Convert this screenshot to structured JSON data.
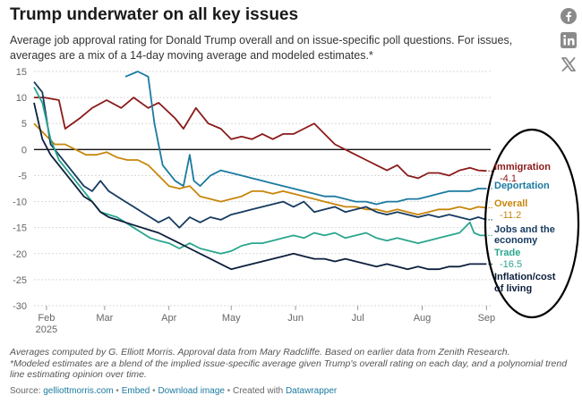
{
  "header": {
    "title": "Trump underwater on all key issues",
    "subtitle": "Average job approval rating for Donald Trump overall and on issue-specific poll questions. For issues, averages are a mix of a 14-day moving average and modeled estimates.*"
  },
  "share": {
    "facebook": "facebook-icon",
    "linkedin": "linkedin-icon",
    "x": "x-icon"
  },
  "chart_data": {
    "type": "line",
    "title": "Trump underwater on all key issues",
    "xlabel": "",
    "ylabel": "",
    "ylim": [
      -30,
      15
    ],
    "yticks": [
      15,
      10,
      5,
      0,
      -5,
      -10,
      -15,
      -20,
      -25,
      -30
    ],
    "x_range": [
      0,
      220
    ],
    "xticks": [
      {
        "x": 6,
        "label": "Feb",
        "sub": "2025"
      },
      {
        "x": 34,
        "label": "Mar",
        "sub": ""
      },
      {
        "x": 65,
        "label": "Apr",
        "sub": ""
      },
      {
        "x": 95,
        "label": "May",
        "sub": ""
      },
      {
        "x": 126,
        "label": "Jun",
        "sub": ""
      },
      {
        "x": 156,
        "label": "Jul",
        "sub": ""
      },
      {
        "x": 187,
        "label": "Aug",
        "sub": ""
      },
      {
        "x": 218,
        "label": "Sep",
        "sub": ""
      }
    ],
    "x_unit": "days since Jan 27, 2025",
    "series": [
      {
        "name": "Immigration",
        "label": "Immigration",
        "last_value": "-4.1",
        "color": "#8b1a1a",
        "points": [
          [
            0,
            10
          ],
          [
            5,
            10
          ],
          [
            12,
            9.5
          ],
          [
            15,
            4
          ],
          [
            22,
            6
          ],
          [
            28,
            8
          ],
          [
            35,
            9.5
          ],
          [
            42,
            8
          ],
          [
            48,
            10
          ],
          [
            55,
            8
          ],
          [
            60,
            9
          ],
          [
            68,
            6
          ],
          [
            72,
            4
          ],
          [
            78,
            8
          ],
          [
            84,
            5
          ],
          [
            90,
            4
          ],
          [
            95,
            2
          ],
          [
            100,
            2.5
          ],
          [
            105,
            2
          ],
          [
            110,
            3
          ],
          [
            115,
            2
          ],
          [
            120,
            3
          ],
          [
            125,
            3
          ],
          [
            130,
            4
          ],
          [
            135,
            5
          ],
          [
            140,
            3
          ],
          [
            145,
            1
          ],
          [
            150,
            0
          ],
          [
            155,
            -1
          ],
          [
            160,
            -2
          ],
          [
            165,
            -3
          ],
          [
            170,
            -4
          ],
          [
            175,
            -3
          ],
          [
            180,
            -5
          ],
          [
            185,
            -5.5
          ],
          [
            190,
            -4.5
          ],
          [
            195,
            -4.5
          ],
          [
            200,
            -5
          ],
          [
            205,
            -4
          ],
          [
            210,
            -3.5
          ],
          [
            214,
            -4
          ],
          [
            218,
            -4.1
          ]
        ]
      },
      {
        "name": "Deportation",
        "label": "Deportation",
        "last_value": "",
        "color": "#1b7aa0",
        "points": [
          [
            44,
            14
          ],
          [
            50,
            15
          ],
          [
            55,
            14
          ],
          [
            58,
            5
          ],
          [
            62,
            -3
          ],
          [
            68,
            -6
          ],
          [
            72,
            -7
          ],
          [
            75,
            -1
          ],
          [
            77,
            -6
          ],
          [
            80,
            -7
          ],
          [
            85,
            -5
          ],
          [
            90,
            -4
          ],
          [
            95,
            -4.5
          ],
          [
            100,
            -5
          ],
          [
            105,
            -5.5
          ],
          [
            110,
            -6
          ],
          [
            115,
            -6.5
          ],
          [
            120,
            -7
          ],
          [
            125,
            -7.5
          ],
          [
            130,
            -8
          ],
          [
            135,
            -8.5
          ],
          [
            140,
            -9
          ],
          [
            145,
            -9
          ],
          [
            150,
            -9.5
          ],
          [
            155,
            -10
          ],
          [
            160,
            -10
          ],
          [
            165,
            -10.5
          ],
          [
            170,
            -10
          ],
          [
            175,
            -10
          ],
          [
            180,
            -9.5
          ],
          [
            185,
            -9.5
          ],
          [
            190,
            -9
          ],
          [
            195,
            -8.5
          ],
          [
            200,
            -8
          ],
          [
            205,
            -8
          ],
          [
            210,
            -8
          ],
          [
            214,
            -7.5
          ],
          [
            218,
            -7.5
          ]
        ]
      },
      {
        "name": "Overall",
        "label": "Overall",
        "last_value": "-11.2",
        "color": "#c8860a",
        "points": [
          [
            0,
            5
          ],
          [
            5,
            3
          ],
          [
            10,
            1
          ],
          [
            15,
            1
          ],
          [
            20,
            0
          ],
          [
            25,
            -1
          ],
          [
            30,
            -1
          ],
          [
            35,
            -0.5
          ],
          [
            40,
            -1.5
          ],
          [
            45,
            -2
          ],
          [
            50,
            -2
          ],
          [
            55,
            -3
          ],
          [
            60,
            -5
          ],
          [
            65,
            -7
          ],
          [
            70,
            -7.5
          ],
          [
            75,
            -7
          ],
          [
            80,
            -9
          ],
          [
            85,
            -9.5
          ],
          [
            90,
            -10
          ],
          [
            95,
            -9.5
          ],
          [
            100,
            -9
          ],
          [
            105,
            -8
          ],
          [
            110,
            -8
          ],
          [
            115,
            -8.5
          ],
          [
            120,
            -8
          ],
          [
            125,
            -8.5
          ],
          [
            130,
            -9
          ],
          [
            135,
            -9.5
          ],
          [
            140,
            -10
          ],
          [
            145,
            -10.5
          ],
          [
            150,
            -11
          ],
          [
            155,
            -11
          ],
          [
            160,
            -11.5
          ],
          [
            165,
            -11.5
          ],
          [
            170,
            -12
          ],
          [
            175,
            -11.5
          ],
          [
            180,
            -12
          ],
          [
            185,
            -12.5
          ],
          [
            190,
            -12
          ],
          [
            195,
            -11.5
          ],
          [
            200,
            -11.5
          ],
          [
            205,
            -11
          ],
          [
            210,
            -11.5
          ],
          [
            214,
            -11
          ],
          [
            218,
            -11.2
          ]
        ]
      },
      {
        "name": "Jobs and the economy",
        "label": "Jobs and the economy",
        "last_value": "",
        "color": "#163a5f",
        "points": [
          [
            0,
            13
          ],
          [
            4,
            11
          ],
          [
            8,
            1
          ],
          [
            12,
            -1
          ],
          [
            16,
            -3
          ],
          [
            20,
            -5
          ],
          [
            24,
            -7
          ],
          [
            28,
            -8
          ],
          [
            32,
            -6
          ],
          [
            36,
            -8
          ],
          [
            40,
            -9
          ],
          [
            44,
            -10
          ],
          [
            48,
            -11
          ],
          [
            52,
            -12
          ],
          [
            56,
            -13
          ],
          [
            60,
            -14
          ],
          [
            65,
            -13
          ],
          [
            70,
            -15
          ],
          [
            75,
            -13
          ],
          [
            80,
            -14
          ],
          [
            85,
            -13
          ],
          [
            90,
            -13.5
          ],
          [
            95,
            -12.5
          ],
          [
            100,
            -12
          ],
          [
            105,
            -11.5
          ],
          [
            110,
            -11
          ],
          [
            115,
            -10.5
          ],
          [
            120,
            -10
          ],
          [
            125,
            -11
          ],
          [
            130,
            -10
          ],
          [
            135,
            -12
          ],
          [
            140,
            -11.5
          ],
          [
            145,
            -11
          ],
          [
            150,
            -12
          ],
          [
            155,
            -11.5
          ],
          [
            160,
            -11
          ],
          [
            165,
            -12
          ],
          [
            170,
            -12.5
          ],
          [
            175,
            -12
          ],
          [
            180,
            -12.5
          ],
          [
            185,
            -13
          ],
          [
            190,
            -12.5
          ],
          [
            195,
            -13
          ],
          [
            200,
            -12.5
          ],
          [
            205,
            -13
          ],
          [
            210,
            -13.5
          ],
          [
            214,
            -13
          ],
          [
            218,
            -13.5
          ]
        ]
      },
      {
        "name": "Trade",
        "label": "Trade",
        "last_value": "-16.5",
        "color": "#2aa68d",
        "points": [
          [
            0,
            12
          ],
          [
            4,
            9
          ],
          [
            8,
            2
          ],
          [
            12,
            -2
          ],
          [
            16,
            -4
          ],
          [
            20,
            -6
          ],
          [
            24,
            -8
          ],
          [
            28,
            -10
          ],
          [
            32,
            -12
          ],
          [
            36,
            -12.5
          ],
          [
            40,
            -13
          ],
          [
            44,
            -14
          ],
          [
            48,
            -15
          ],
          [
            52,
            -16
          ],
          [
            56,
            -17
          ],
          [
            60,
            -17.5
          ],
          [
            65,
            -18
          ],
          [
            70,
            -19
          ],
          [
            75,
            -18
          ],
          [
            80,
            -19
          ],
          [
            85,
            -19.5
          ],
          [
            90,
            -20
          ],
          [
            95,
            -19.5
          ],
          [
            100,
            -18.5
          ],
          [
            105,
            -18
          ],
          [
            110,
            -18
          ],
          [
            115,
            -17.5
          ],
          [
            120,
            -17
          ],
          [
            125,
            -16.5
          ],
          [
            130,
            -17
          ],
          [
            135,
            -16
          ],
          [
            140,
            -16.5
          ],
          [
            145,
            -16
          ],
          [
            150,
            -17
          ],
          [
            155,
            -16.5
          ],
          [
            160,
            -16
          ],
          [
            165,
            -17
          ],
          [
            170,
            -17.5
          ],
          [
            175,
            -17
          ],
          [
            180,
            -17.5
          ],
          [
            185,
            -18
          ],
          [
            190,
            -17.5
          ],
          [
            195,
            -17
          ],
          [
            200,
            -16.5
          ],
          [
            205,
            -16
          ],
          [
            210,
            -14
          ],
          [
            212,
            -16
          ],
          [
            215,
            -16.5
          ],
          [
            218,
            -16.5
          ]
        ]
      },
      {
        "name": "Inflation/cost of living",
        "label": "Inflation/cost of living",
        "last_value": "",
        "color": "#0d1f3c",
        "points": [
          [
            0,
            9
          ],
          [
            4,
            2
          ],
          [
            8,
            -1
          ],
          [
            12,
            -3
          ],
          [
            16,
            -5
          ],
          [
            20,
            -7
          ],
          [
            24,
            -9
          ],
          [
            28,
            -10
          ],
          [
            32,
            -12
          ],
          [
            36,
            -13
          ],
          [
            40,
            -13.5
          ],
          [
            44,
            -14
          ],
          [
            48,
            -14.5
          ],
          [
            52,
            -15
          ],
          [
            56,
            -15.5
          ],
          [
            60,
            -16
          ],
          [
            65,
            -17
          ],
          [
            70,
            -18
          ],
          [
            75,
            -19
          ],
          [
            80,
            -20
          ],
          [
            85,
            -21
          ],
          [
            90,
            -22
          ],
          [
            95,
            -23
          ],
          [
            100,
            -22.5
          ],
          [
            105,
            -22
          ],
          [
            110,
            -21.5
          ],
          [
            115,
            -21
          ],
          [
            120,
            -20.5
          ],
          [
            125,
            -20
          ],
          [
            130,
            -20.5
          ],
          [
            135,
            -21
          ],
          [
            140,
            -21
          ],
          [
            145,
            -21.5
          ],
          [
            150,
            -21
          ],
          [
            155,
            -21.5
          ],
          [
            160,
            -22
          ],
          [
            165,
            -22.5
          ],
          [
            170,
            -22
          ],
          [
            175,
            -22.5
          ],
          [
            180,
            -23
          ],
          [
            185,
            -22.5
          ],
          [
            190,
            -23
          ],
          [
            195,
            -23
          ],
          [
            200,
            -22.5
          ],
          [
            205,
            -22.5
          ],
          [
            210,
            -22
          ],
          [
            214,
            -22
          ],
          [
            218,
            -22
          ]
        ]
      }
    ]
  },
  "labels": {
    "immigration": {
      "name": "Immigration",
      "value": "-4.1"
    },
    "deportation": {
      "name": "Deportation"
    },
    "overall": {
      "name": "Overall",
      "value": "-11.2"
    },
    "jobs": {
      "line1": "Jobs and the",
      "line2": "economy"
    },
    "trade": {
      "name": "Trade",
      "value": "-16.5"
    },
    "inflation": {
      "line1": "Inflation/cost",
      "line2": "of living"
    }
  },
  "footer": {
    "note1": "Averages computed by G. Elliott Morris. Approval data from Mary Radcliffe. Based on earlier data from Zenith Research.",
    "note2": "*Modeled estimates are a blend of the implied issue-specific average given Trump's overall rating on each day, and a polynomial trend line estimating opinion over time.",
    "source_label": "Source:",
    "source_link": "gelliottmorris.com",
    "sep": "•",
    "embed": "Embed",
    "download": "Download image",
    "created_with": "Created with",
    "datawrapper": "Datawrapper"
  }
}
